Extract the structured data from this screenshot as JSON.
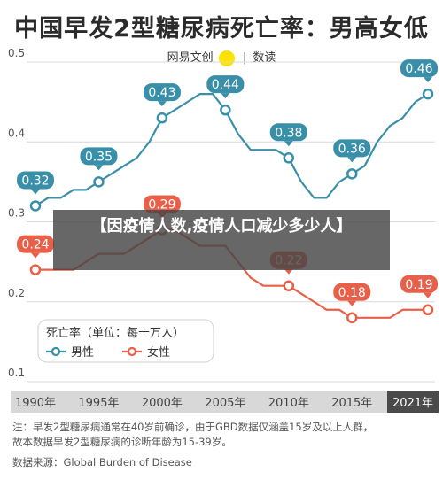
{
  "header": {
    "title": "中国早发2型糖尿病死亡率：男高女低",
    "brand_left": "网易文创",
    "brand_logo_text": "NetEase",
    "brand_sep": "|",
    "brand_right": "数读"
  },
  "overlay": {
    "text": "【因疫情人数,疫情人口减少多少人】"
  },
  "footer": {
    "note_line1": "注：早发2型糖尿病通常在40岁前确诊，由于GBD数据仅涵盖15岁及以上人群，",
    "note_line2": "故本数据早发2型糖尿病的诊断年龄为15-39岁。",
    "source": "数据来源：Global Burden of Disease"
  },
  "colors": {
    "male": "#3a8fa8",
    "female": "#e8604a",
    "grid": "#d9d9d9",
    "axis_band": "#d8d8d8",
    "axis_band_dark": "#4a4a4a"
  },
  "chart_data": {
    "type": "line",
    "title": "中国早发2型糖尿病死亡率：男高女低",
    "legend_title": "死亡率（单位：每十万人）",
    "legend_position": "bottom-left",
    "ylim": [
      0.1,
      0.5
    ],
    "yticks": [
      "0.1",
      "0.2",
      "0.3",
      "0.4",
      "0.5"
    ],
    "xlim": [
      1990,
      2021
    ],
    "xticks": [
      {
        "year": 1990,
        "label": "1990年"
      },
      {
        "year": 1995,
        "label": "1995年"
      },
      {
        "year": 2000,
        "label": "2000年"
      },
      {
        "year": 2005,
        "label": "2005年"
      },
      {
        "year": 2010,
        "label": "2010年"
      },
      {
        "year": 2015,
        "label": "2015年"
      },
      {
        "year": 2021,
        "label": "2021年"
      }
    ],
    "grid": true,
    "series": [
      {
        "name": "男性",
        "color": "#3a8fa8",
        "x": [
          1990,
          1991,
          1992,
          1993,
          1994,
          1995,
          1996,
          1997,
          1998,
          1999,
          2000,
          2001,
          2002,
          2003,
          2004,
          2005,
          2006,
          2007,
          2008,
          2009,
          2010,
          2011,
          2012,
          2013,
          2014,
          2015,
          2016,
          2017,
          2018,
          2019,
          2020,
          2021
        ],
        "values": [
          0.32,
          0.33,
          0.33,
          0.34,
          0.34,
          0.35,
          0.36,
          0.37,
          0.38,
          0.4,
          0.43,
          0.44,
          0.45,
          0.46,
          0.46,
          0.44,
          0.41,
          0.39,
          0.39,
          0.39,
          0.38,
          0.35,
          0.33,
          0.33,
          0.35,
          0.36,
          0.37,
          0.4,
          0.42,
          0.43,
          0.45,
          0.46
        ],
        "labels": [
          {
            "x": 1990,
            "value": 0.32,
            "text": "0.32"
          },
          {
            "x": 1995,
            "value": 0.35,
            "text": "0.35"
          },
          {
            "x": 2000,
            "value": 0.43,
            "text": "0.43"
          },
          {
            "x": 2005,
            "value": 0.44,
            "text": "0.44"
          },
          {
            "x": 2010,
            "value": 0.38,
            "text": "0.38"
          },
          {
            "x": 2015,
            "value": 0.36,
            "text": "0.36"
          },
          {
            "x": 2021,
            "value": 0.46,
            "text": "0.46"
          }
        ]
      },
      {
        "name": "女性",
        "color": "#e8604a",
        "x": [
          1990,
          1991,
          1992,
          1993,
          1994,
          1995,
          1996,
          1997,
          1998,
          1999,
          2000,
          2001,
          2002,
          2003,
          2004,
          2005,
          2006,
          2007,
          2008,
          2009,
          2010,
          2011,
          2012,
          2013,
          2014,
          2015,
          2016,
          2017,
          2018,
          2019,
          2020,
          2021
        ],
        "values": [
          0.24,
          0.24,
          0.24,
          0.24,
          0.25,
          0.26,
          0.26,
          0.26,
          0.27,
          0.28,
          0.29,
          0.29,
          0.28,
          0.27,
          0.27,
          0.27,
          0.25,
          0.23,
          0.22,
          0.22,
          0.22,
          0.21,
          0.2,
          0.19,
          0.19,
          0.18,
          0.18,
          0.18,
          0.18,
          0.19,
          0.19,
          0.19
        ],
        "labels": [
          {
            "x": 1990,
            "value": 0.24,
            "text": "0.24"
          },
          {
            "x": 2000,
            "value": 0.29,
            "text": "0.29"
          },
          {
            "x": 2010,
            "value": 0.22,
            "text": "0.22"
          },
          {
            "x": 2015,
            "value": 0.18,
            "text": "0.18"
          },
          {
            "x": 2021,
            "value": 0.19,
            "text": "0.19"
          }
        ]
      }
    ]
  }
}
